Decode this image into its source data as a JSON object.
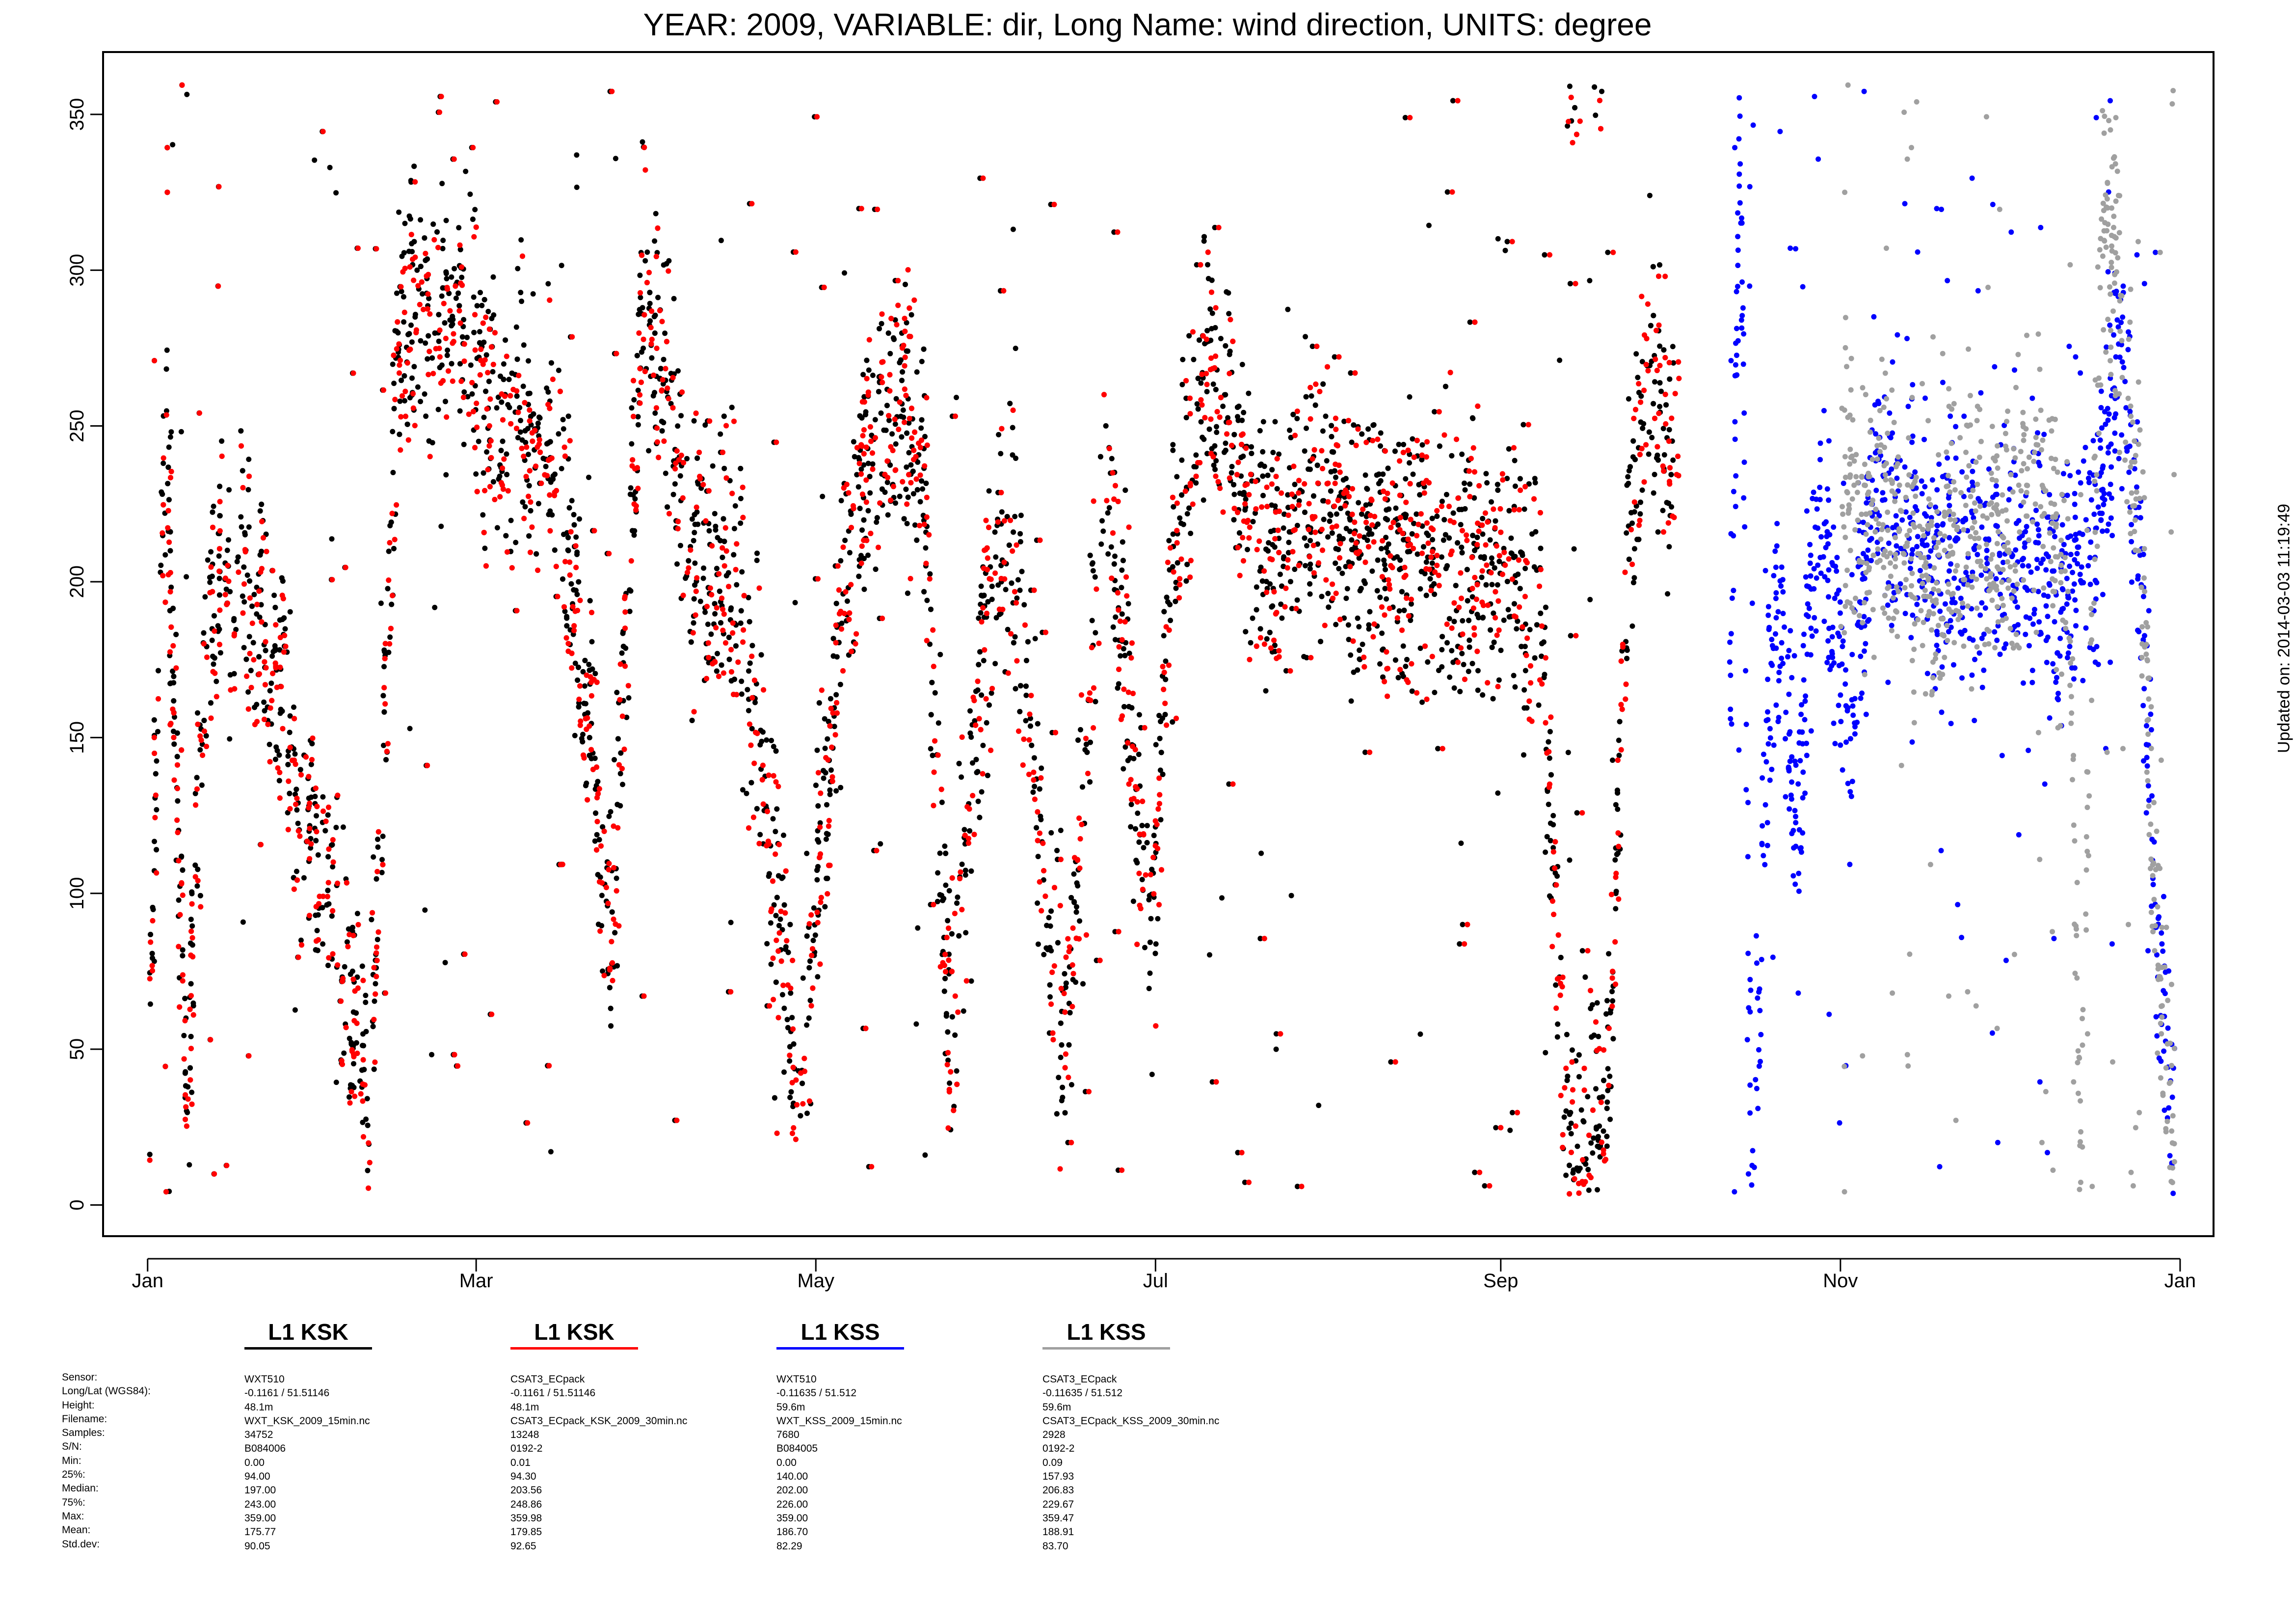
{
  "chart_data": {
    "type": "scatter",
    "title": "YEAR: 2009, VARIABLE: dir, Long Name: wind  direction, UNITS: degree",
    "xlabel": "",
    "ylabel": "",
    "ylim": [
      -10,
      370
    ],
    "y_ticks": [
      0,
      50,
      100,
      150,
      200,
      250,
      300,
      350
    ],
    "x_ticks": [
      {
        "label": "Jan",
        "date": "2009-01-01"
      },
      {
        "label": "Mar",
        "date": "2009-03-01"
      },
      {
        "label": "May",
        "date": "2009-05-01"
      },
      {
        "label": "Jul",
        "date": "2009-07-01"
      },
      {
        "label": "Sep",
        "date": "2009-09-01"
      },
      {
        "label": "Nov",
        "date": "2009-11-01"
      },
      {
        "label": "Jan",
        "date": "2010-01-01"
      }
    ],
    "xlim": [
      "2008-12-24",
      "2010-01-07"
    ],
    "grid": false,
    "legend_position": "bottom",
    "series": [
      {
        "name": "L1 KSK",
        "color": "#000000",
        "x_range": [
          "2009-01-01",
          "2009-10-02"
        ],
        "profile": [
          [
            "2009-01-01",
            30
          ],
          [
            "2009-01-04",
            265
          ],
          [
            "2009-01-08",
            35
          ],
          [
            "2009-01-12",
            200
          ],
          [
            "2009-01-18",
            215
          ],
          [
            "2009-01-26",
            160
          ],
          [
            "2009-02-01",
            105
          ],
          [
            "2009-02-10",
            40
          ],
          [
            "2009-02-15",
            285
          ],
          [
            "2009-02-24",
            285
          ],
          [
            "2009-03-06",
            255
          ],
          [
            "2009-03-16",
            245
          ],
          [
            "2009-03-25",
            85
          ],
          [
            "2009-03-31",
            290
          ],
          [
            "2009-04-08",
            220
          ],
          [
            "2009-04-18",
            190
          ],
          [
            "2009-04-28",
            35
          ],
          [
            "2009-05-06",
            200
          ],
          [
            "2009-05-12",
            250
          ],
          [
            "2009-05-20",
            245
          ],
          [
            "2009-05-25",
            60
          ],
          [
            "2009-06-01",
            195
          ],
          [
            "2009-06-06",
            210
          ],
          [
            "2009-06-14",
            40
          ],
          [
            "2009-06-22",
            235
          ],
          [
            "2009-06-30",
            90
          ],
          [
            "2009-07-04",
            215
          ],
          [
            "2009-07-10",
            270
          ],
          [
            "2009-07-20",
            215
          ],
          [
            "2009-08-01",
            225
          ],
          [
            "2009-08-12",
            205
          ],
          [
            "2009-08-24",
            210
          ],
          [
            "2009-09-01",
            200
          ],
          [
            "2009-09-08",
            190
          ],
          [
            "2009-09-13",
            25
          ],
          [
            "2009-09-20",
            30
          ],
          [
            "2009-09-24",
            215
          ],
          [
            "2009-09-28",
            270
          ],
          [
            "2009-10-02",
            240
          ]
        ]
      },
      {
        "name": "L1 KSK",
        "color": "#ff0000",
        "x_range": [
          "2009-01-01",
          "2009-10-03"
        ],
        "profile": [
          [
            "2009-01-01",
            30
          ],
          [
            "2009-01-04",
            250
          ],
          [
            "2009-01-08",
            30
          ],
          [
            "2009-01-12",
            195
          ],
          [
            "2009-01-18",
            210
          ],
          [
            "2009-01-26",
            155
          ],
          [
            "2009-02-01",
            110
          ],
          [
            "2009-02-10",
            35
          ],
          [
            "2009-02-15",
            280
          ],
          [
            "2009-02-24",
            280
          ],
          [
            "2009-03-06",
            250
          ],
          [
            "2009-03-16",
            240
          ],
          [
            "2009-03-25",
            90
          ],
          [
            "2009-03-31",
            285
          ],
          [
            "2009-04-08",
            225
          ],
          [
            "2009-04-18",
            185
          ],
          [
            "2009-04-28",
            30
          ],
          [
            "2009-05-06",
            195
          ],
          [
            "2009-05-12",
            255
          ],
          [
            "2009-05-20",
            250
          ],
          [
            "2009-05-25",
            55
          ],
          [
            "2009-06-01",
            200
          ],
          [
            "2009-06-06",
            205
          ],
          [
            "2009-06-14",
            35
          ],
          [
            "2009-06-22",
            240
          ],
          [
            "2009-06-30",
            85
          ],
          [
            "2009-07-04",
            210
          ],
          [
            "2009-07-10",
            265
          ],
          [
            "2009-07-20",
            210
          ],
          [
            "2009-08-01",
            230
          ],
          [
            "2009-08-12",
            200
          ],
          [
            "2009-08-24",
            215
          ],
          [
            "2009-09-01",
            205
          ],
          [
            "2009-09-08",
            185
          ],
          [
            "2009-09-13",
            20
          ],
          [
            "2009-09-20",
            25
          ],
          [
            "2009-09-24",
            220
          ],
          [
            "2009-09-28",
            275
          ],
          [
            "2009-10-03",
            235
          ]
        ]
      },
      {
        "name": "L1 KSS",
        "color": "#0000ff",
        "x_range": [
          "2009-10-12",
          "2009-12-31"
        ],
        "profile": [
          [
            "2009-10-12",
            150
          ],
          [
            "2009-10-14",
            340
          ],
          [
            "2009-10-16",
            10
          ],
          [
            "2009-10-20",
            200
          ],
          [
            "2009-10-24",
            130
          ],
          [
            "2009-10-28",
            220
          ],
          [
            "2009-11-03",
            165
          ],
          [
            "2009-11-07",
            235
          ],
          [
            "2009-11-12",
            225
          ],
          [
            "2009-11-18",
            200
          ],
          [
            "2009-11-24",
            210
          ],
          [
            "2009-12-01",
            210
          ],
          [
            "2009-12-06",
            205
          ],
          [
            "2009-12-12",
            200
          ],
          [
            "2009-12-17",
            210
          ],
          [
            "2009-12-21",
            280
          ],
          [
            "2009-12-25",
            200
          ],
          [
            "2009-12-28",
            80
          ],
          [
            "2009-12-31",
            20
          ]
        ]
      },
      {
        "name": "L1 KSS",
        "color": "#a0a0a0",
        "x_range": [
          "2009-11-01",
          "2009-12-31"
        ],
        "profile": [
          [
            "2009-11-01",
            230
          ],
          [
            "2009-11-06",
            230
          ],
          [
            "2009-11-12",
            215
          ],
          [
            "2009-11-18",
            200
          ],
          [
            "2009-11-24",
            215
          ],
          [
            "2009-12-01",
            215
          ],
          [
            "2009-12-06",
            240
          ],
          [
            "2009-12-12",
            205
          ],
          [
            "2009-12-14",
            20
          ],
          [
            "2009-12-18",
            320
          ],
          [
            "2009-12-21",
            290
          ],
          [
            "2009-12-25",
            210
          ],
          [
            "2009-12-28",
            85
          ],
          [
            "2009-12-31",
            15
          ]
        ]
      }
    ]
  },
  "updated_on": "Updated on: 2014-03-03 11:19:49",
  "stats_labels": [
    "Sensor:",
    "Long/Lat (WGS84):",
    "Height:",
    "Filename:",
    "Samples:",
    "S/N:",
    "Min:",
    "25%:",
    "Median:",
    "75%:",
    "Max:",
    "Mean:",
    "Std.dev:"
  ],
  "stats_columns": [
    {
      "legend": "L1 KSK",
      "color": "#000000",
      "values": [
        "WXT510",
        "-0.1161 / 51.51146",
        "48.1m",
        "WXT_KSK_2009_15min.nc",
        "34752",
        "B084006",
        "0.00",
        "94.00",
        "197.00",
        "243.00",
        "359.00",
        "175.77",
        "90.05"
      ]
    },
    {
      "legend": "L1 KSK",
      "color": "#ff0000",
      "values": [
        "CSAT3_ECpack",
        "-0.1161 / 51.51146",
        "48.1m",
        "CSAT3_ECpack_KSK_2009_30min.nc",
        "13248",
        "0192-2",
        "0.01",
        "94.30",
        "203.56",
        "248.86",
        "359.98",
        "179.85",
        "92.65"
      ]
    },
    {
      "legend": "L1 KSS",
      "color": "#0000ff",
      "values": [
        "WXT510",
        "-0.11635 / 51.512",
        "59.6m",
        "WXT_KSS_2009_15min.nc",
        "7680",
        "B084005",
        "0.00",
        "140.00",
        "202.00",
        "226.00",
        "359.00",
        "186.70",
        "82.29"
      ]
    },
    {
      "legend": "L1 KSS",
      "color": "#a0a0a0",
      "values": [
        "CSAT3_ECpack",
        "-0.11635 / 51.512",
        "59.6m",
        "CSAT3_ECpack_KSS_2009_30min.nc",
        "2928",
        "0192-2",
        "0.09",
        "157.93",
        "206.83",
        "229.67",
        "359.47",
        "188.91",
        "83.70"
      ]
    }
  ]
}
